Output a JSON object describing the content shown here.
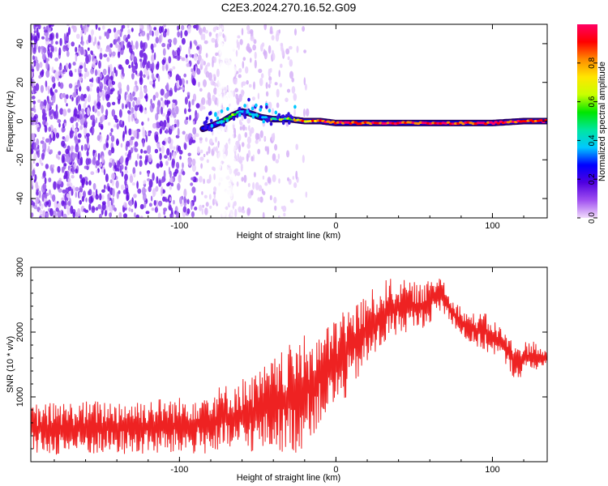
{
  "figure": {
    "title": "C2E3.2024.270.16.52.G09"
  },
  "chart_data": [
    {
      "type": "heatmap",
      "title": "C2E3.2024.270.16.52.G09",
      "xlabel": "Height of straight line (km)",
      "ylabel": "Frequency (Hz)",
      "xlim": [
        -195,
        135
      ],
      "ylim": [
        -50,
        50
      ],
      "x_ticks": [
        -100,
        0,
        100
      ],
      "x_tick_labels": [
        "-100",
        "0",
        "100"
      ],
      "y_ticks": [
        -40,
        -20,
        0,
        20,
        40
      ],
      "y_tick_labels": [
        "-40",
        "-20",
        "0",
        "20",
        "40"
      ],
      "colorbar": {
        "label": "Normalized spectral amplitude",
        "range": [
          0,
          1
        ],
        "ticks": [
          0.0,
          0.2,
          0.4,
          0.6,
          0.8
        ],
        "tick_labels": [
          "0.0",
          "0.2",
          "0.4",
          "0.6",
          "0.8"
        ],
        "colormap": [
          "#f2dcfc",
          "#a050f0",
          "#5000e0",
          "#0000ff",
          "#00c8ff",
          "#00e6a0",
          "#00e600",
          "#c8ff00",
          "#ffe600",
          "#ff8c00",
          "#ff0000",
          "#ff0064"
        ]
      },
      "noise_region": {
        "x_range": [
          -195,
          -22
        ],
        "frequency_range": [
          -50,
          50
        ],
        "amplitude": 0.15
      },
      "signal_ridge": {
        "x": [
          -85,
          -78,
          -72,
          -66,
          -60,
          -55,
          -48,
          -40,
          -30,
          -20,
          -10,
          0,
          10,
          20,
          40,
          60,
          80,
          100,
          120,
          135
        ],
        "frequency": [
          -4,
          -2,
          0,
          3,
          5,
          4,
          2,
          1,
          1,
          0,
          0,
          -1,
          -1,
          -1,
          -1,
          -1,
          -1,
          -1,
          0,
          0
        ],
        "amplitude": [
          0.25,
          0.3,
          0.4,
          0.5,
          0.35,
          0.45,
          0.4,
          0.5,
          0.6,
          0.8,
          0.85,
          0.9,
          0.9,
          0.85,
          0.9,
          0.95,
          0.9,
          0.95,
          0.95,
          0.95
        ]
      }
    },
    {
      "type": "line",
      "xlabel": "Height of straight line (km)",
      "ylabel": "SNR (10 * v/v)",
      "xlim": [
        -195,
        135
      ],
      "ylim": [
        0,
        3000
      ],
      "x_ticks": [
        -100,
        0,
        100
      ],
      "x_tick_labels": [
        "-100",
        "0",
        "100"
      ],
      "y_ticks": [
        1000,
        2000,
        3000
      ],
      "y_tick_labels": [
        "1000",
        "2000",
        "3000"
      ],
      "line_color": "#ee2222",
      "envelope": {
        "x": [
          -195,
          -150,
          -100,
          -70,
          -50,
          -35,
          -25,
          -15,
          -5,
          5,
          15,
          25,
          35,
          45,
          55,
          60,
          67,
          75,
          85,
          95,
          105,
          115,
          125,
          135
        ],
        "low": [
          100,
          100,
          100,
          120,
          150,
          150,
          100,
          400,
          700,
          900,
          1300,
          1600,
          1900,
          2000,
          2050,
          2150,
          2300,
          2100,
          1800,
          1700,
          1600,
          1250,
          1400,
          1450
        ],
        "high": [
          900,
          950,
          1000,
          1200,
          1400,
          1700,
          1900,
          2000,
          2100,
          2400,
          2500,
          2700,
          2850,
          2800,
          2750,
          2800,
          2950,
          2500,
          2300,
          2300,
          2100,
          1800,
          1900,
          1700
        ]
      }
    }
  ]
}
